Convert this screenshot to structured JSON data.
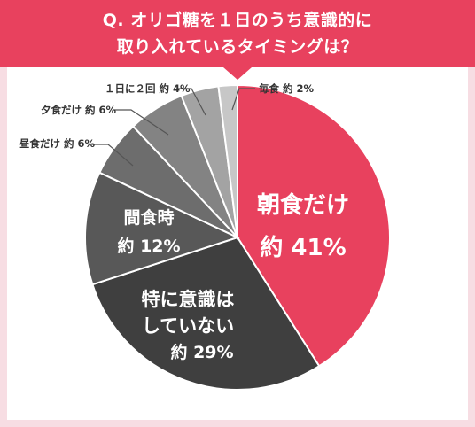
{
  "title": {
    "line1": "Q. オリゴ糖を１日のうち意識的に",
    "line2": "取り入れているタイミングは？"
  },
  "colors": {
    "accent": "#e8415e",
    "background": "#f7dde3"
  },
  "chart_data": {
    "type": "pie",
    "title": "Q. オリゴ糖を１日のうち意識的に取り入れているタイミングは？",
    "slices": [
      {
        "label": "朝食だけ",
        "value": 41,
        "value_label": "約 41%",
        "color": "#e8415e",
        "placement": "inside"
      },
      {
        "label": "特に意識はしていない",
        "label_lines": [
          "特に意識は",
          "していない"
        ],
        "value": 29,
        "value_label": "約 29%",
        "color": "#3f3f3f",
        "placement": "inside"
      },
      {
        "label": "間食時",
        "value": 12,
        "value_label": "約 12%",
        "color": "#585858",
        "placement": "inside"
      },
      {
        "label": "昼食だけ",
        "value": 6,
        "value_label": "約 6%",
        "color": "#6d6d6d",
        "placement": "outside",
        "callout": "昼食だけ 約 6%"
      },
      {
        "label": "夕食だけ",
        "value": 6,
        "value_label": "約 6%",
        "color": "#838383",
        "placement": "outside",
        "callout": "夕食だけ 約 6%"
      },
      {
        "label": "１日に２回",
        "value": 4,
        "value_label": "約 4%",
        "color": "#a3a3a3",
        "placement": "outside",
        "callout": "１日に２回 約 4%"
      },
      {
        "label": "毎食",
        "value": 2,
        "value_label": "約 2%",
        "color": "#c7c7c7",
        "placement": "outside",
        "callout": "毎食 約 2%"
      }
    ]
  }
}
